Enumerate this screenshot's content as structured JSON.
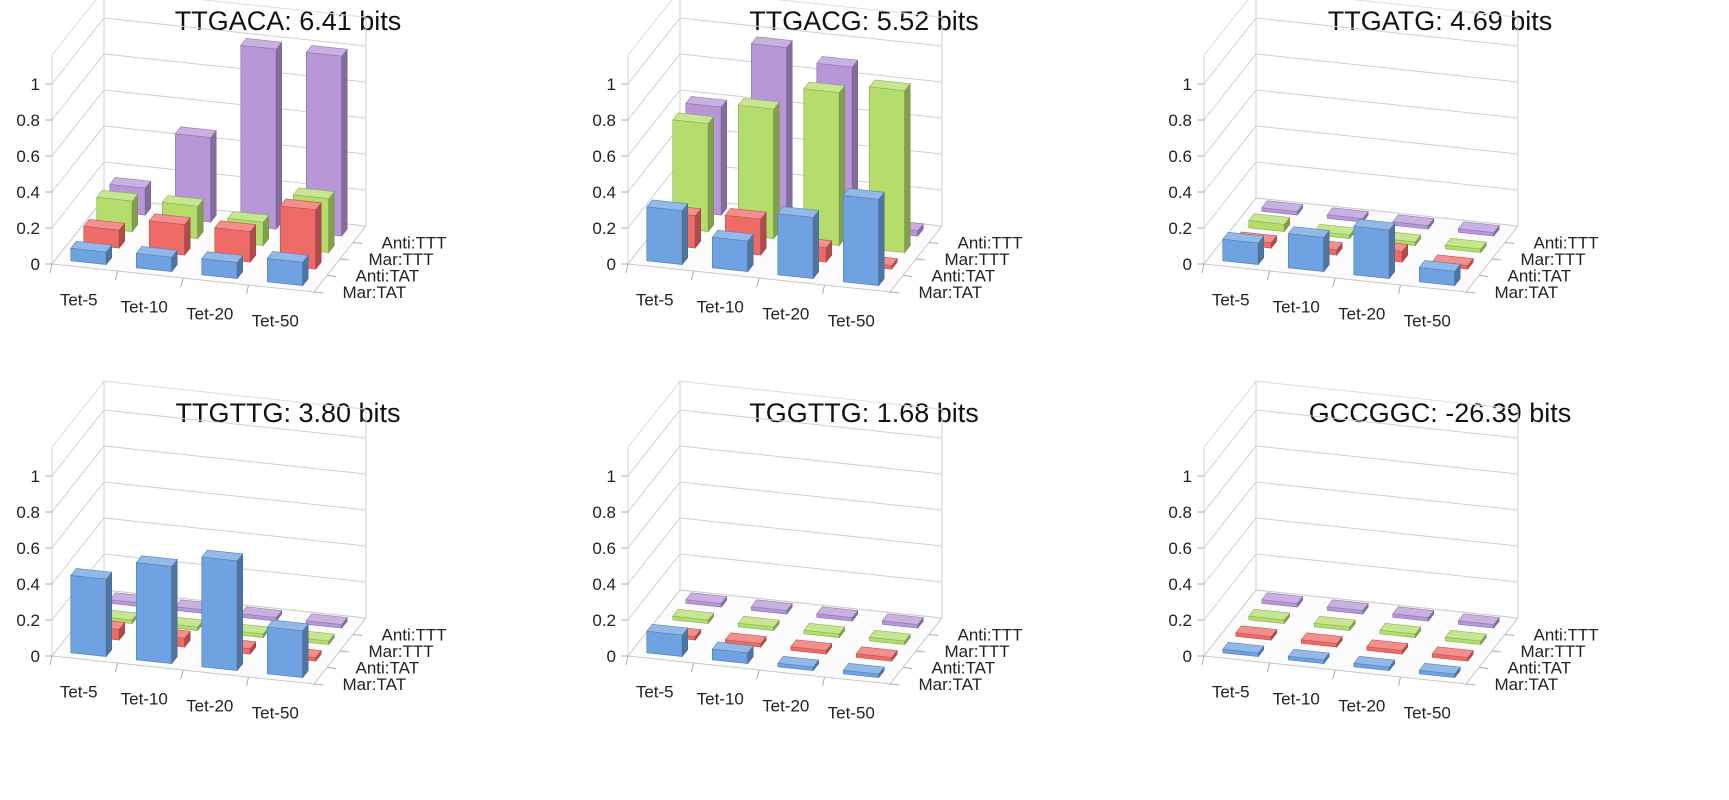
{
  "chart_data": [
    {
      "type": "bar",
      "title": "TTGACA: 6.41 bits",
      "categories": [
        "Tet-5",
        "Tet-10",
        "Tet-20",
        "Tet-50"
      ],
      "y_ticks": [
        "0",
        "0.2",
        "0.4",
        "0.6",
        "0.8",
        "1"
      ],
      "ylim": [
        0,
        1
      ],
      "series": [
        {
          "name": "Mar:TAT",
          "values": [
            0.07,
            0.08,
            0.09,
            0.13
          ]
        },
        {
          "name": "Anti:TAT",
          "values": [
            0.1,
            0.17,
            0.17,
            0.33
          ]
        },
        {
          "name": "Mar:TTT",
          "values": [
            0.17,
            0.18,
            0.13,
            0.3
          ]
        },
        {
          "name": "Anti:TTT",
          "values": [
            0.15,
            0.47,
            1.0,
            1.0
          ]
        }
      ]
    },
    {
      "type": "bar",
      "title": "TTGACG: 5.52 bits",
      "categories": [
        "Tet-5",
        "Tet-10",
        "Tet-20",
        "Tet-50"
      ],
      "y_ticks": [
        "0",
        "0.2",
        "0.4",
        "0.6",
        "0.8",
        "1"
      ],
      "ylim": [
        0,
        1
      ],
      "series": [
        {
          "name": "Mar:TAT",
          "values": [
            0.3,
            0.17,
            0.34,
            0.48
          ]
        },
        {
          "name": "Anti:TAT",
          "values": [
            0.18,
            0.2,
            0.08,
            0.02
          ]
        },
        {
          "name": "Mar:TTT",
          "values": [
            0.6,
            0.72,
            0.85,
            0.9
          ]
        },
        {
          "name": "Anti:TTT",
          "values": [
            0.6,
            0.97,
            0.9,
            0.03
          ]
        }
      ]
    },
    {
      "type": "bar",
      "title": "TTGATG: 4.69 bits",
      "categories": [
        "Tet-5",
        "Tet-10",
        "Tet-20",
        "Tet-50"
      ],
      "y_ticks": [
        "0",
        "0.2",
        "0.4",
        "0.6",
        "0.8",
        "1"
      ],
      "ylim": [
        0,
        1
      ],
      "series": [
        {
          "name": "Mar:TAT",
          "values": [
            0.12,
            0.19,
            0.27,
            0.08
          ]
        },
        {
          "name": "Anti:TAT",
          "values": [
            0.03,
            0.03,
            0.06,
            0.02
          ]
        },
        {
          "name": "Mar:TTT",
          "values": [
            0.04,
            0.02,
            0.02,
            0.02
          ]
        },
        {
          "name": "Anti:TTT",
          "values": [
            0.02,
            0.02,
            0.02,
            0.02
          ]
        }
      ]
    },
    {
      "type": "bar",
      "title": "TTGTTG: 3.80 bits",
      "categories": [
        "Tet-5",
        "Tet-10",
        "Tet-20",
        "Tet-50"
      ],
      "y_ticks": [
        "0",
        "0.2",
        "0.4",
        "0.6",
        "0.8",
        "1"
      ],
      "ylim": [
        0,
        1
      ],
      "series": [
        {
          "name": "Mar:TAT",
          "values": [
            0.43,
            0.54,
            0.61,
            0.26
          ]
        },
        {
          "name": "Anti:TAT",
          "values": [
            0.06,
            0.05,
            0.03,
            0.02
          ]
        },
        {
          "name": "Mar:TTT",
          "values": [
            0.02,
            0.02,
            0.02,
            0.02
          ]
        },
        {
          "name": "Anti:TTT",
          "values": [
            0.02,
            0.02,
            0.02,
            0.02
          ]
        }
      ]
    },
    {
      "type": "bar",
      "title": "TGGTTG: 1.68 bits",
      "categories": [
        "Tet-5",
        "Tet-10",
        "Tet-20",
        "Tet-50"
      ],
      "y_ticks": [
        "0",
        "0.2",
        "0.4",
        "0.6",
        "0.8",
        "1"
      ],
      "ylim": [
        0,
        1
      ],
      "series": [
        {
          "name": "Mar:TAT",
          "values": [
            0.12,
            0.06,
            0.02,
            0.02
          ]
        },
        {
          "name": "Anti:TAT",
          "values": [
            0.02,
            0.02,
            0.02,
            0.02
          ]
        },
        {
          "name": "Mar:TTT",
          "values": [
            0.02,
            0.02,
            0.02,
            0.02
          ]
        },
        {
          "name": "Anti:TTT",
          "values": [
            0.02,
            0.02,
            0.02,
            0.02
          ]
        }
      ]
    },
    {
      "type": "bar",
      "title": "GCCGGC: -26.39 bits",
      "categories": [
        "Tet-5",
        "Tet-10",
        "Tet-20",
        "Tet-50"
      ],
      "y_ticks": [
        "0",
        "0.2",
        "0.4",
        "0.6",
        "0.8",
        "1"
      ],
      "ylim": [
        0,
        1
      ],
      "series": [
        {
          "name": "Mar:TAT",
          "values": [
            0.02,
            0.02,
            0.02,
            0.02
          ]
        },
        {
          "name": "Anti:TAT",
          "values": [
            0.02,
            0.02,
            0.02,
            0.02
          ]
        },
        {
          "name": "Mar:TTT",
          "values": [
            0.02,
            0.02,
            0.02,
            0.02
          ]
        },
        {
          "name": "Anti:TTT",
          "values": [
            0.02,
            0.02,
            0.02,
            0.02
          ]
        }
      ]
    }
  ],
  "colors": {
    "Mar:TAT": "#6fa2e0",
    "Anti:TAT": "#ef6b68",
    "Mar:TTT": "#b4dd6c",
    "Anti:TTT": "#b897d8"
  }
}
